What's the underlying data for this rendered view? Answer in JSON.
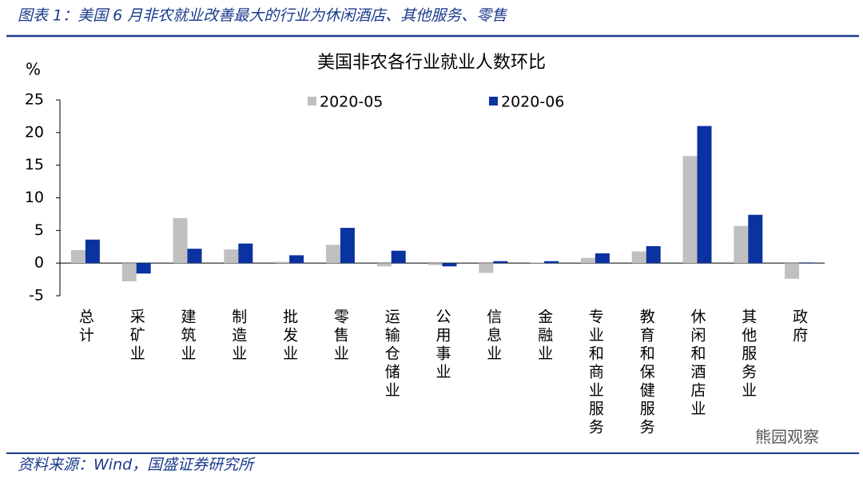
{
  "header": {
    "title": "图表 1：美国 6 月非农就业改善最大的行业为休闲酒店、其他服务、零售"
  },
  "chart_data": {
    "type": "bar",
    "title": "美国非农各行业就业人数环比",
    "y_label": "%",
    "categories": [
      "总计",
      "采矿业",
      "建筑业",
      "制造业",
      "批发业",
      "零售业",
      "运输仓储业",
      "公用事业",
      "信息业",
      "金融业",
      "专业和商业服务",
      "教育和保健服务",
      "休闲和酒店业",
      "其他服务业",
      "政府"
    ],
    "series": [
      {
        "name": "2020-05",
        "color": "#c0c0c0",
        "values": [
          2.0,
          -2.8,
          6.9,
          2.1,
          0.2,
          2.8,
          -0.5,
          -0.3,
          -1.5,
          0.1,
          0.8,
          1.8,
          16.4,
          5.7,
          -2.4
        ]
      },
      {
        "name": "2020-06",
        "color": "#0a32a0",
        "values": [
          3.6,
          -1.6,
          2.2,
          3.0,
          1.2,
          5.4,
          1.9,
          -0.5,
          0.3,
          0.3,
          1.5,
          2.6,
          21.0,
          7.4,
          0.1
        ]
      }
    ],
    "ylim": [
      -5,
      25
    ],
    "yticks": [
      -5,
      0,
      5,
      10,
      15,
      20,
      25
    ],
    "grid": false,
    "legend": "top"
  },
  "footer": {
    "source": "资料来源：Wind，国盛证券研究所"
  },
  "watermark": "熊园观察"
}
